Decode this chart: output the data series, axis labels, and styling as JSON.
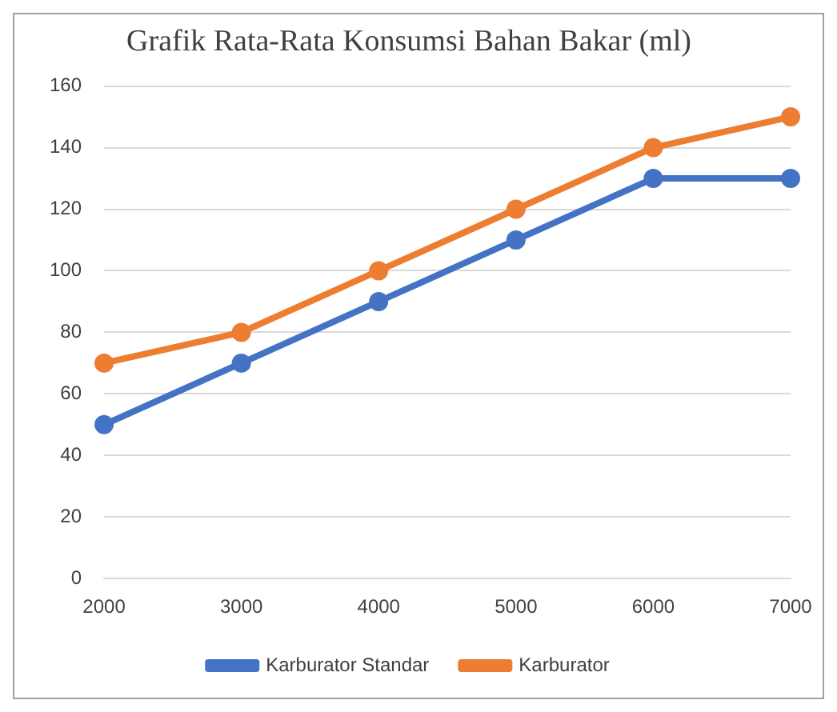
{
  "chart_data": {
    "type": "line",
    "title": "Grafik Rata-Rata Konsumsi Bahan Bakar (ml)",
    "categories": [
      "2000",
      "3000",
      "4000",
      "5000",
      "6000",
      "7000"
    ],
    "series": [
      {
        "name": "Karburator Standar",
        "color": "#4472c4",
        "values": [
          50,
          70,
          90,
          110,
          130,
          130
        ]
      },
      {
        "name": "Karburator",
        "color": "#ed7d31",
        "values": [
          70,
          80,
          100,
          120,
          140,
          150
        ]
      }
    ],
    "ylim": [
      0,
      160
    ],
    "yticks": [
      0,
      20,
      40,
      60,
      80,
      100,
      120,
      140,
      160
    ],
    "grid": "y",
    "legend": "bottom",
    "marker": "circle",
    "line_style": "solid"
  }
}
